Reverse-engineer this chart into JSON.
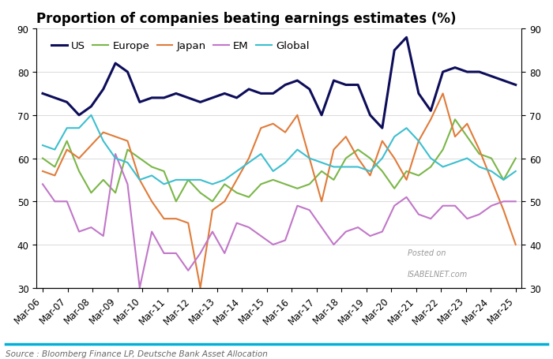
{
  "title": "Proportion of companies beating earnings estimates (%)",
  "source": "Source : Bloomberg Finance LP, Deutsche Bank Asset Allocation",
  "watermark_line1": "Posted on",
  "watermark_line2": "ISABELNET.com",
  "ylim": [
    30,
    90
  ],
  "yticks": [
    30,
    40,
    50,
    60,
    70,
    80,
    90
  ],
  "x_tick_labels": [
    "Mar-06",
    "Mar-07",
    "Mar-08",
    "Mar-09",
    "Mar-10",
    "Mar-11",
    "Mar-12",
    "Mar-13",
    "Mar-14",
    "Mar-15",
    "Mar-16",
    "Mar-17",
    "Mar-18",
    "Mar-19",
    "Mar-20",
    "Mar-21",
    "Mar-22",
    "Mar-23",
    "Mar-24",
    "Mar-25"
  ],
  "series": {
    "US": {
      "color": "#0d0d5a",
      "linewidth": 2.2,
      "values": [
        75,
        74,
        73,
        70,
        72,
        76,
        82,
        80,
        73,
        74,
        74,
        75,
        74,
        73,
        74,
        75,
        74,
        76,
        75,
        75,
        77,
        78,
        76,
        70,
        78,
        77,
        77,
        70,
        67,
        85,
        88,
        75,
        71,
        80,
        81,
        80,
        80,
        79,
        78,
        77
      ]
    },
    "Europe": {
      "color": "#7ab648",
      "linewidth": 1.5,
      "values": [
        60,
        58,
        64,
        57,
        52,
        55,
        52,
        62,
        60,
        58,
        57,
        50,
        55,
        52,
        50,
        54,
        52,
        51,
        54,
        55,
        54,
        53,
        54,
        57,
        55,
        60,
        62,
        60,
        57,
        53,
        57,
        56,
        58,
        62,
        69,
        65,
        61,
        60,
        55,
        60
      ]
    },
    "Japan": {
      "color": "#e07b39",
      "linewidth": 1.5,
      "values": [
        57,
        56,
        62,
        60,
        63,
        66,
        65,
        64,
        55,
        50,
        46,
        46,
        45,
        30,
        48,
        50,
        55,
        60,
        67,
        68,
        66,
        70,
        60,
        50,
        62,
        65,
        60,
        56,
        64,
        60,
        55,
        64,
        69,
        75,
        65,
        68,
        62,
        55,
        48,
        40
      ]
    },
    "EM": {
      "color": "#c176c8",
      "linewidth": 1.5,
      "values": [
        54,
        50,
        50,
        43,
        44,
        42,
        61,
        54,
        30,
        43,
        38,
        38,
        34,
        38,
        43,
        38,
        45,
        44,
        42,
        40,
        41,
        49,
        48,
        44,
        40,
        43,
        44,
        42,
        43,
        49,
        51,
        47,
        46,
        49,
        49,
        46,
        47,
        49,
        50,
        50
      ]
    },
    "Global": {
      "color": "#3cbfcf",
      "linewidth": 1.5,
      "values": [
        63,
        62,
        67,
        67,
        70,
        64,
        60,
        59,
        55,
        56,
        54,
        55,
        55,
        55,
        54,
        55,
        57,
        59,
        61,
        57,
        59,
        62,
        60,
        59,
        58,
        58,
        58,
        57,
        60,
        65,
        67,
        64,
        60,
        58,
        59,
        60,
        58,
        57,
        55,
        57
      ]
    }
  },
  "background_color": "#ffffff",
  "grid_color": "#cccccc",
  "title_fontsize": 12,
  "legend_fontsize": 9.5,
  "tick_fontsize": 8.5,
  "source_fontsize": 7.5,
  "bottom_line_color": "#00b0d8"
}
